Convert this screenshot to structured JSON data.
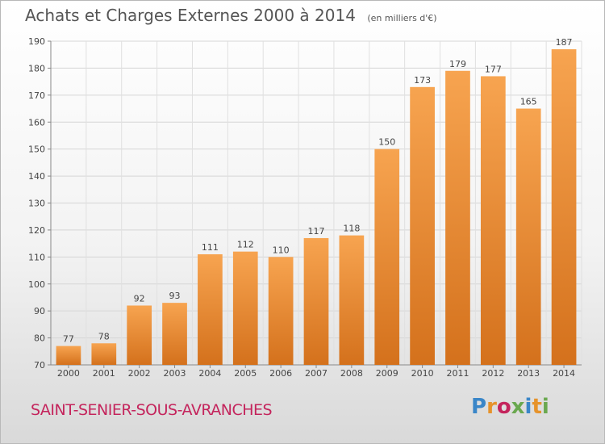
{
  "chart_data": {
    "type": "bar",
    "title": "Achats et Charges Externes 2000 à 2014",
    "subtitle": "(en milliers d'€)",
    "xlabel": "",
    "ylabel": "",
    "categories": [
      "2000",
      "2001",
      "2002",
      "2003",
      "2004",
      "2005",
      "2006",
      "2007",
      "2008",
      "2009",
      "2010",
      "2011",
      "2012",
      "2013",
      "2014"
    ],
    "values": [
      77,
      78,
      92,
      93,
      111,
      112,
      110,
      117,
      118,
      150,
      173,
      179,
      177,
      165,
      187
    ],
    "ylim": [
      70,
      190
    ],
    "yticks": [
      70,
      80,
      90,
      100,
      110,
      120,
      130,
      140,
      150,
      160,
      170,
      180,
      190
    ],
    "grid": true,
    "bar_color_top": "#f7a450",
    "bar_color_bottom": "#d4711c",
    "data_labels": true
  },
  "footer": {
    "location": "SAINT-SENIER-SOUS-AVRANCHES",
    "logo_text": "Proxiti",
    "logo_colors": [
      "#3a86c8",
      "#e6932b",
      "#c4245c",
      "#6aa84f",
      "#3a86c8",
      "#e6932b",
      "#6aa84f"
    ]
  }
}
